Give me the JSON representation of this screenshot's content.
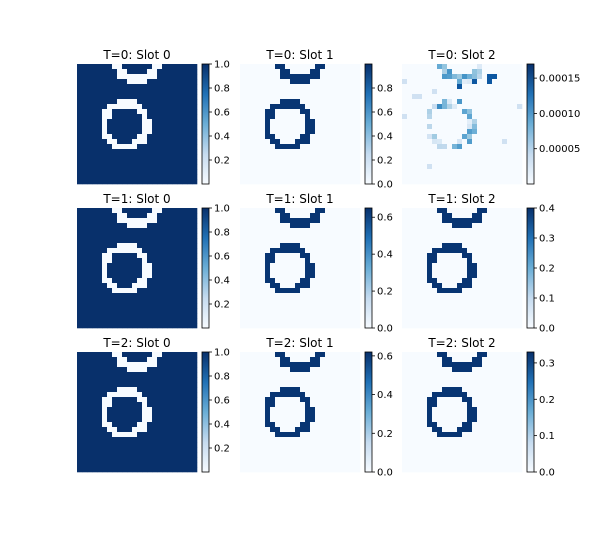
{
  "figure": {
    "rows": 3,
    "cols": 3,
    "colormap": "Blues",
    "colormap_low": "#f7fbff",
    "colormap_high": "#08306b"
  },
  "chart_data": [
    {
      "type": "heatmap",
      "title": "T=0: Slot 0",
      "pattern": "bg",
      "vmin": 0.0,
      "vmax": 1.0,
      "colorbar_ticks": [
        {
          "v": 1.0,
          "label": "1.0"
        },
        {
          "v": 0.8,
          "label": "0.8"
        },
        {
          "v": 0.6,
          "label": "0.6"
        },
        {
          "v": 0.4,
          "label": "0.4"
        },
        {
          "v": 0.2,
          "label": "0.2"
        }
      ]
    },
    {
      "type": "heatmap",
      "title": "T=0: Slot 1",
      "pattern": "fg",
      "vmin": 0.0,
      "vmax": 1.0,
      "colorbar_ticks": [
        {
          "v": 0.8,
          "label": "0.8"
        },
        {
          "v": 0.6,
          "label": "0.6"
        },
        {
          "v": 0.4,
          "label": "0.4"
        },
        {
          "v": 0.2,
          "label": "0.2"
        },
        {
          "v": 0.0,
          "label": "0.0"
        }
      ]
    },
    {
      "type": "heatmap",
      "title": "T=0: Slot 2",
      "pattern": "noisy",
      "vmin": 0.0,
      "vmax": 0.00017,
      "colorbar_ticks": [
        {
          "v": 0.00015,
          "label": "0.00015"
        },
        {
          "v": 0.0001,
          "label": "0.00010"
        },
        {
          "v": 5e-05,
          "label": "0.00005"
        }
      ]
    },
    {
      "type": "heatmap",
      "title": "T=1: Slot 0",
      "pattern": "bg",
      "vmin": 0.0,
      "vmax": 1.0,
      "colorbar_ticks": [
        {
          "v": 1.0,
          "label": "1.0"
        },
        {
          "v": 0.8,
          "label": "0.8"
        },
        {
          "v": 0.6,
          "label": "0.6"
        },
        {
          "v": 0.4,
          "label": "0.4"
        },
        {
          "v": 0.2,
          "label": "0.2"
        }
      ]
    },
    {
      "type": "heatmap",
      "title": "T=1: Slot 1",
      "pattern": "fg",
      "vmin": 0.0,
      "vmax": 0.65,
      "colorbar_ticks": [
        {
          "v": 0.6,
          "label": "0.6"
        },
        {
          "v": 0.4,
          "label": "0.4"
        },
        {
          "v": 0.2,
          "label": "0.2"
        },
        {
          "v": 0.0,
          "label": "0.0"
        }
      ]
    },
    {
      "type": "heatmap",
      "title": "T=1: Slot 2",
      "pattern": "fg",
      "vmin": 0.0,
      "vmax": 0.4,
      "colorbar_ticks": [
        {
          "v": 0.4,
          "label": "0.4"
        },
        {
          "v": 0.3,
          "label": "0.3"
        },
        {
          "v": 0.2,
          "label": "0.2"
        },
        {
          "v": 0.1,
          "label": "0.1"
        },
        {
          "v": 0.0,
          "label": "0.0"
        }
      ]
    },
    {
      "type": "heatmap",
      "title": "T=2: Slot 0",
      "pattern": "bg",
      "vmin": 0.0,
      "vmax": 1.0,
      "colorbar_ticks": [
        {
          "v": 1.0,
          "label": "1.0"
        },
        {
          "v": 0.8,
          "label": "0.8"
        },
        {
          "v": 0.6,
          "label": "0.6"
        },
        {
          "v": 0.4,
          "label": "0.4"
        },
        {
          "v": 0.2,
          "label": "0.2"
        }
      ]
    },
    {
      "type": "heatmap",
      "title": "T=2: Slot 1",
      "pattern": "fg",
      "vmin": 0.0,
      "vmax": 0.62,
      "colorbar_ticks": [
        {
          "v": 0.6,
          "label": "0.6"
        },
        {
          "v": 0.4,
          "label": "0.4"
        },
        {
          "v": 0.2,
          "label": "0.2"
        },
        {
          "v": 0.0,
          "label": "0.0"
        }
      ]
    },
    {
      "type": "heatmap",
      "title": "T=2: Slot 2",
      "pattern": "fg",
      "vmin": 0.0,
      "vmax": 0.33,
      "colorbar_ticks": [
        {
          "v": 0.3,
          "label": "0.3"
        },
        {
          "v": 0.2,
          "label": "0.2"
        },
        {
          "v": 0.1,
          "label": "0.1"
        },
        {
          "v": 0.0,
          "label": "0.0"
        }
      ]
    }
  ]
}
